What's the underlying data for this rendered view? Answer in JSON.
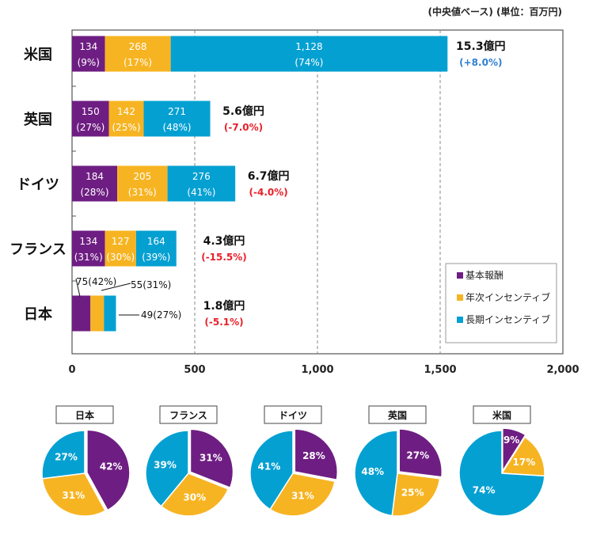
{
  "unit_note": "(中央値ベース) (単位：百万円)",
  "colors": {
    "base": "#6e1e82",
    "annual": "#f7b422",
    "long": "#05a0d2",
    "positive": "#2f7fd0",
    "negative": "#e8202a"
  },
  "chart_data": [
    {
      "type": "bar",
      "orientation": "horizontal",
      "stacked": true,
      "categories": [
        "米国",
        "英国",
        "ドイツ",
        "フランス",
        "日本"
      ],
      "series": [
        {
          "name": "基本報酬",
          "values": [
            134,
            150,
            184,
            134,
            75
          ],
          "pct": [
            "9%",
            "27%",
            "28%",
            "31%",
            "42%"
          ]
        },
        {
          "name": "年次インセンティブ",
          "values": [
            268,
            142,
            205,
            127,
            55
          ],
          "pct": [
            "17%",
            "25%",
            "31%",
            "30%",
            "31%"
          ]
        },
        {
          "name": "長期インセンティブ",
          "values": [
            1128,
            271,
            276,
            164,
            49
          ],
          "pct": [
            "74%",
            "48%",
            "41%",
            "39%",
            "27%"
          ]
        }
      ],
      "value_labels": [
        [
          "134",
          "268",
          "1,128"
        ],
        [
          "150",
          "142",
          "271"
        ],
        [
          "184",
          "205",
          "276"
        ],
        [
          "134",
          "127",
          "164"
        ],
        [
          "75",
          "55",
          "49"
        ]
      ],
      "totals": [
        "15.3億円",
        "5.6億円",
        "6.7億円",
        "4.3億円",
        "1.8億円"
      ],
      "changes": [
        "(+8.0%)",
        "(-7.0%)",
        "(-4.0%)",
        "(-15.5%)",
        "(-5.1%)"
      ],
      "change_sign": [
        "positive",
        "negative",
        "negative",
        "negative",
        "negative"
      ],
      "xlim": [
        0,
        2000
      ],
      "xticks": [
        "0",
        "500",
        "1,000",
        "1,500",
        "2,000"
      ],
      "xtick_values": [
        0,
        500,
        1000,
        1500,
        2000
      ],
      "grid": "vertical dashed",
      "legend": "bottom-right"
    },
    {
      "type": "pie",
      "charts": [
        {
          "title": "日本",
          "values": [
            42,
            31,
            27
          ]
        },
        {
          "title": "フランス",
          "values": [
            31,
            30,
            39
          ]
        },
        {
          "title": "ドイツ",
          "values": [
            28,
            31,
            41
          ]
        },
        {
          "title": "英国",
          "values": [
            27,
            25,
            48
          ]
        },
        {
          "title": "米国",
          "values": [
            9,
            17,
            74
          ]
        }
      ],
      "slice_order": [
        "基本報酬",
        "年次インセンティブ",
        "長期インセンティブ"
      ]
    }
  ]
}
